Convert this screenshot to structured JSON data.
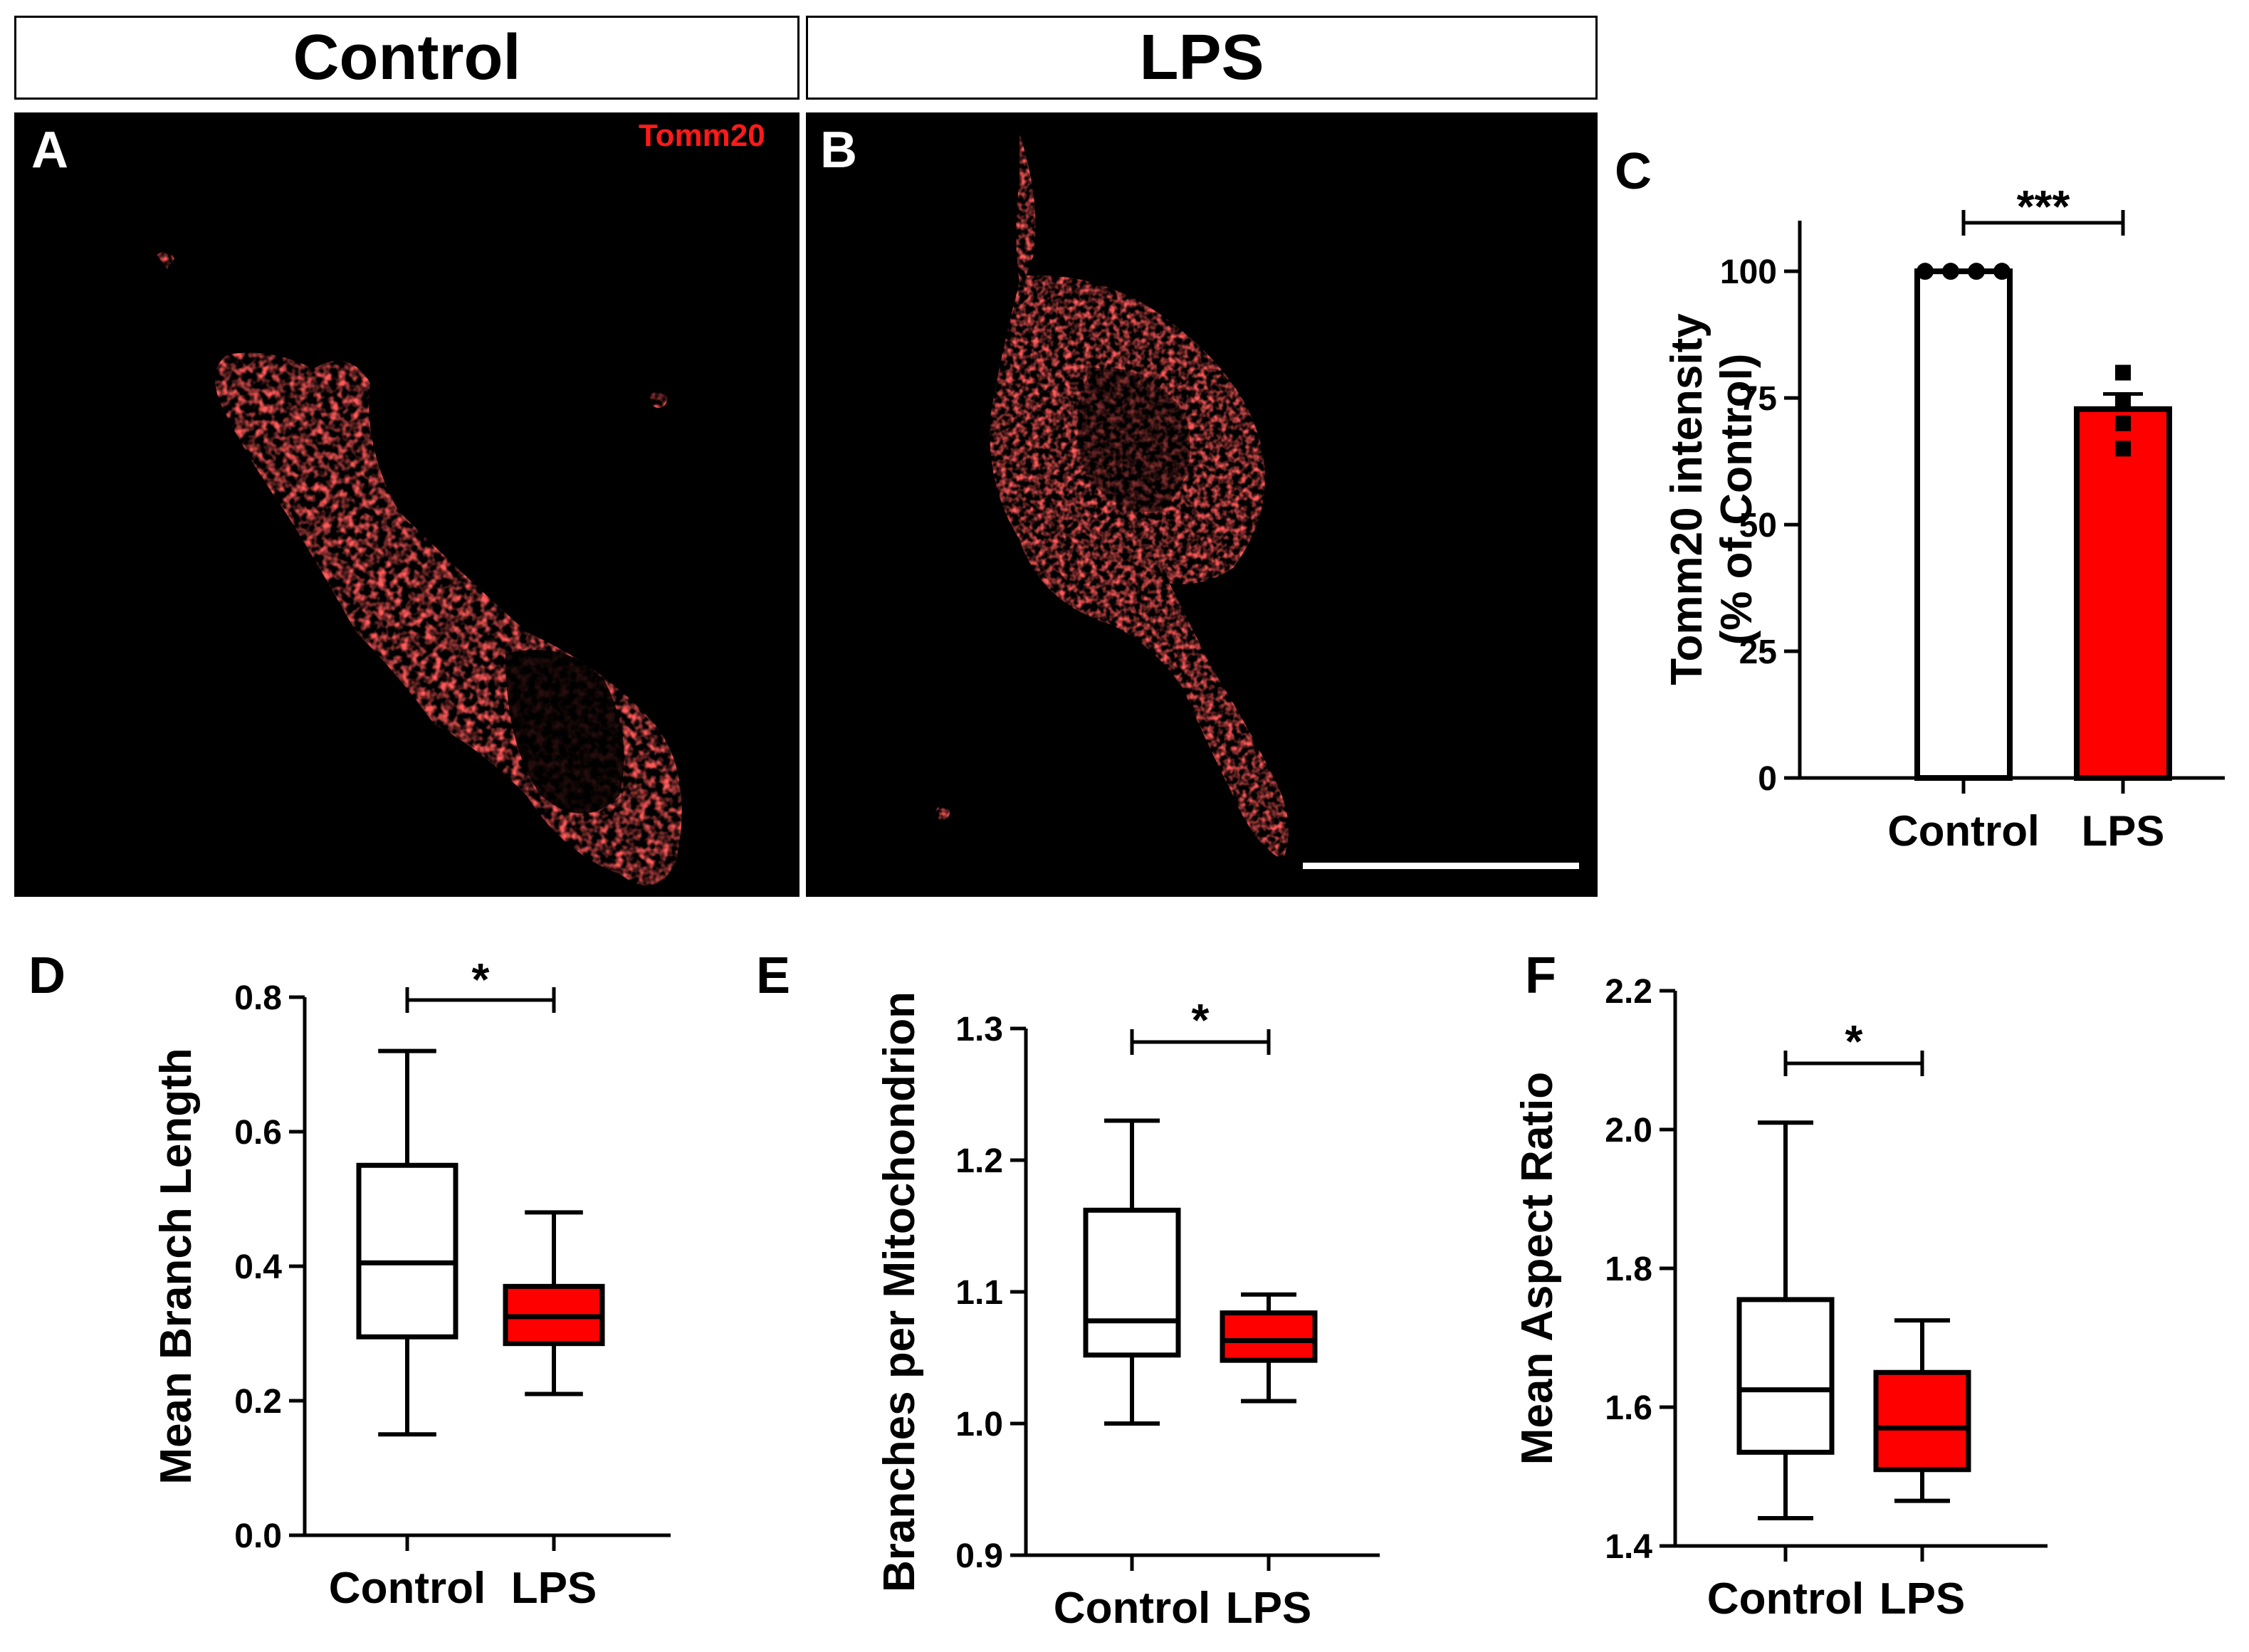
{
  "headers": {
    "control": "Control",
    "lps": "LPS"
  },
  "panel_a": {
    "letter": "A",
    "marker": "Tomm20"
  },
  "panel_b": {
    "letter": "B"
  },
  "colors": {
    "stain": "#ff1a1a",
    "lps_fill": "#ff0000",
    "control_fill": "#ffffff"
  },
  "chart_data": [
    {
      "panel": "C",
      "type": "bar",
      "categories": [
        "Control",
        "LPS"
      ],
      "values": [
        100,
        72.8
      ],
      "errors": [
        0,
        3
      ],
      "points": [
        [
          100,
          100,
          100,
          100
        ],
        [
          80,
          74,
          70,
          65
        ]
      ],
      "ylabel": [
        "Tomm20 intensity",
        "(% of Control)"
      ],
      "ylim": [
        0,
        110
      ],
      "yticks": [
        "0",
        "25",
        "50",
        "75",
        "100"
      ],
      "significance": "***"
    },
    {
      "panel": "D",
      "type": "box",
      "categories": [
        "Control",
        "LPS"
      ],
      "boxes": [
        {
          "min": 0.15,
          "q1": 0.295,
          "median": 0.405,
          "q3": 0.55,
          "max": 0.72
        },
        {
          "min": 0.21,
          "q1": 0.285,
          "median": 0.325,
          "q3": 0.37,
          "max": 0.48
        }
      ],
      "ylabel": "Mean Branch Length",
      "ylim": [
        0,
        0.8
      ],
      "yticks": [
        "0.0",
        "0.2",
        "0.4",
        "0.6",
        "0.8"
      ],
      "significance": "*"
    },
    {
      "panel": "E",
      "type": "box",
      "categories": [
        "Control",
        "LPS"
      ],
      "boxes": [
        {
          "min": 1.0,
          "q1": 1.052,
          "median": 1.078,
          "q3": 1.162,
          "max": 1.23
        },
        {
          "min": 1.017,
          "q1": 1.048,
          "median": 1.063,
          "q3": 1.084,
          "max": 1.098
        }
      ],
      "ylabel": "Branches per Mitochondrion",
      "ylim": [
        0.9,
        1.3
      ],
      "yticks": [
        "0.9",
        "1.0",
        "1.1",
        "1.2",
        "1.3"
      ],
      "significance": "*"
    },
    {
      "panel": "F",
      "type": "box",
      "categories": [
        "Control",
        "LPS"
      ],
      "boxes": [
        {
          "min": 1.44,
          "q1": 1.535,
          "median": 1.625,
          "q3": 1.755,
          "max": 2.01
        },
        {
          "min": 1.465,
          "q1": 1.51,
          "median": 1.57,
          "q3": 1.65,
          "max": 1.725
        }
      ],
      "ylabel": "Mean Aspect Ratio",
      "ylim": [
        1.4,
        2.2
      ],
      "yticks": [
        "1.4",
        "1.6",
        "1.8",
        "2.0",
        "2.2"
      ],
      "significance": "*"
    }
  ]
}
